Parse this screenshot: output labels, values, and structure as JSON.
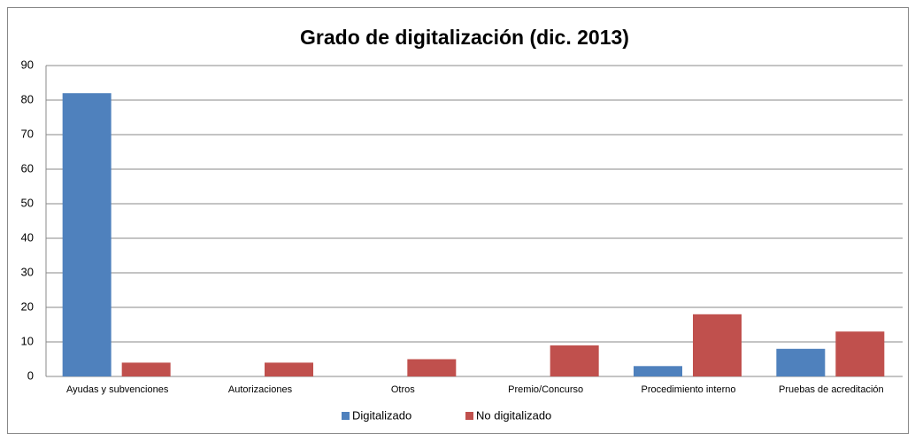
{
  "chart_data": {
    "type": "bar",
    "title": "Grado de digitalización (dic. 2013)",
    "categories": [
      "Ayudas y subvenciones",
      "Autorizaciones",
      "Otros",
      "Premio/Concurso",
      "Procedimiento interno",
      "Pruebas de acreditación"
    ],
    "series": [
      {
        "name": "Digitalizado",
        "color": "#4f81bd",
        "values": [
          82,
          0,
          0,
          0,
          3,
          8
        ]
      },
      {
        "name": "No digitalizado",
        "color": "#c0504d",
        "values": [
          4,
          4,
          5,
          9,
          18,
          13
        ]
      }
    ],
    "ylim": [
      0,
      90
    ],
    "yticks": [
      0,
      10,
      20,
      30,
      40,
      50,
      60,
      70,
      80,
      90
    ],
    "grid": true,
    "legend": "bottom"
  }
}
